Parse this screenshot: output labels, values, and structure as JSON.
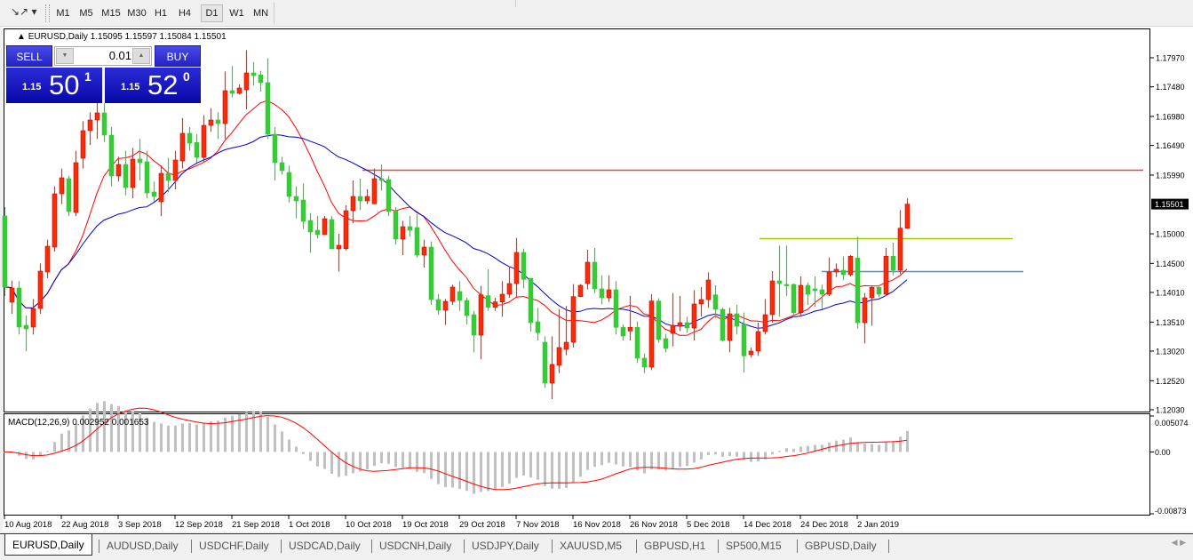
{
  "toolbar": {
    "chart_tool_icon": "line-tools-icon",
    "timeframes": [
      "M1",
      "M5",
      "M15",
      "M30",
      "H1",
      "H4",
      "D1",
      "W1",
      "MN"
    ],
    "active_timeframe": "D1"
  },
  "chart_header": {
    "symbol": "EURUSD,Daily",
    "ohlc": "1.15095 1.15597 1.15084 1.15501"
  },
  "trade_panel": {
    "sell_label": "SELL",
    "buy_label": "BUY",
    "lot_size": "0.01",
    "sell_price_prefix": "1.15",
    "sell_price_big": "50",
    "sell_price_sup": "1",
    "buy_price_prefix": "1.15",
    "buy_price_big": "52",
    "buy_price_sup": "0"
  },
  "tabs": [
    {
      "label": "EURUSD,Daily",
      "active": true
    },
    {
      "label": "AUDUSD,Daily"
    },
    {
      "label": "USDCHF,Daily"
    },
    {
      "label": "USDCAD,Daily"
    },
    {
      "label": "USDCNH,Daily"
    },
    {
      "label": "USDJPY,Daily"
    },
    {
      "label": "XAUUSD,M5"
    },
    {
      "label": "GBPUSD,H1"
    },
    {
      "label": "SP500,M15"
    },
    {
      "label": "GBPUSD,Daily"
    }
  ],
  "colors": {
    "bull": "#ff2a00",
    "bear": "#32cd32",
    "ma_fast": "#ff0000",
    "ma_slow": "#0000c8",
    "macd_hist": "#c0c0c0",
    "macd_signal": "#ff0000",
    "hline_resistance": "#e8464a",
    "hline_green": "#99cc00",
    "hline_blue": "#4a90d9"
  },
  "chart_data": {
    "type": "candlestick",
    "symbol": "EURUSD",
    "timeframe": "Daily",
    "ylim": [
      1.1203,
      1.1797
    ],
    "y_ticks": [
      "1.17970",
      "1.17480",
      "1.16980",
      "1.16490",
      "1.15990",
      "1.15000",
      "1.14500",
      "1.14010",
      "1.13510",
      "1.13020",
      "1.12520",
      "1.12030"
    ],
    "current_price": "1.15501",
    "x_tick_labels": [
      "10 Aug 2018",
      "22 Aug 2018",
      "3 Sep 2018",
      "12 Sep 2018",
      "21 Sep 2018",
      "1 Oct 2018",
      "10 Oct 2018",
      "19 Oct 2018",
      "29 Oct 2018",
      "7 Nov 2018",
      "16 Nov 2018",
      "26 Nov 2018",
      "5 Dec 2018",
      "14 Dec 2018",
      "24 Dec 2018",
      "2 Jan 2019"
    ],
    "ohlc": [
      [
        1.153,
        1.1545,
        1.1395,
        1.141
      ],
      [
        1.13845,
        1.1421,
        1.1365,
        1.14085
      ],
      [
        1.14085,
        1.142,
        1.133,
        1.13425
      ],
      [
        1.13455,
        1.1362,
        1.1302,
        1.13395
      ],
      [
        1.13425,
        1.139,
        1.133,
        1.1374
      ],
      [
        1.1374,
        1.145,
        1.1365,
        1.1437
      ],
      [
        1.14355,
        1.149,
        1.1425,
        1.1479
      ],
      [
        1.14775,
        1.158,
        1.147,
        1.15675
      ],
      [
        1.15675,
        1.161,
        1.155,
        1.15945
      ],
      [
        1.1593,
        1.1598,
        1.153,
        1.15375
      ],
      [
        1.1536,
        1.164,
        1.153,
        1.162
      ],
      [
        1.16275,
        1.169,
        1.161,
        1.1674
      ],
      [
        1.1674,
        1.1705,
        1.165,
        1.1692
      ],
      [
        1.1692,
        1.1725,
        1.166,
        1.1704
      ],
      [
        1.1704,
        1.172,
        1.1655,
        1.16665
      ],
      [
        1.16665,
        1.168,
        1.158,
        1.15975
      ],
      [
        1.15975,
        1.163,
        1.1588,
        1.1617
      ],
      [
        1.1617,
        1.164,
        1.1565,
        1.1578
      ],
      [
        1.1578,
        1.1645,
        1.156,
        1.1626
      ],
      [
        1.1626,
        1.166,
        1.159,
        1.162
      ],
      [
        1.16215,
        1.164,
        1.156,
        1.1569
      ],
      [
        1.15705,
        1.1588,
        1.1555,
        1.1563
      ],
      [
        1.1554,
        1.1615,
        1.153,
        1.1602
      ],
      [
        1.1602,
        1.1628,
        1.157,
        1.159
      ],
      [
        1.159,
        1.164,
        1.1575,
        1.16245
      ],
      [
        1.1623,
        1.1695,
        1.161,
        1.16695
      ],
      [
        1.16695,
        1.168,
        1.164,
        1.1653
      ],
      [
        1.1654,
        1.1668,
        1.162,
        1.1629
      ],
      [
        1.1629,
        1.17,
        1.162,
        1.1683
      ],
      [
        1.1683,
        1.1712,
        1.1672,
        1.1692
      ],
      [
        1.1692,
        1.1705,
        1.166,
        1.1686
      ],
      [
        1.1686,
        1.1774,
        1.166,
        1.17415
      ],
      [
        1.17415,
        1.1783,
        1.173,
        1.1737
      ],
      [
        1.1737,
        1.1752,
        1.1735,
        1.1746
      ],
      [
        1.1743,
        1.181,
        1.171,
        1.17715
      ],
      [
        1.17715,
        1.179,
        1.175,
        1.1767
      ],
      [
        1.1768,
        1.1775,
        1.174,
        1.1755
      ],
      [
        1.1755,
        1.1796,
        1.166,
        1.1668
      ],
      [
        1.1668,
        1.168,
        1.159,
        1.162
      ],
      [
        1.162,
        1.163,
        1.16,
        1.16065
      ],
      [
        1.16035,
        1.1615,
        1.1553,
        1.1563
      ],
      [
        1.1563,
        1.158,
        1.1526,
        1.15555
      ],
      [
        1.1557,
        1.1585,
        1.1508,
        1.1521
      ],
      [
        1.15225,
        1.1535,
        1.1468,
        1.1503
      ],
      [
        1.1506,
        1.153,
        1.1492,
        1.14985
      ],
      [
        1.14985,
        1.153,
        1.1498,
        1.15255
      ],
      [
        1.1524,
        1.153,
        1.1475,
        1.14745
      ],
      [
        1.14745,
        1.15,
        1.1436,
        1.14805
      ],
      [
        1.1475,
        1.1548,
        1.1472,
        1.1539
      ],
      [
        1.1539,
        1.159,
        1.1518,
        1.1563
      ],
      [
        1.1563,
        1.1593,
        1.154,
        1.15555
      ],
      [
        1.15555,
        1.1575,
        1.155,
        1.1563
      ],
      [
        1.15505,
        1.161,
        1.155,
        1.1593
      ],
      [
        1.1593,
        1.1617,
        1.1573,
        1.159
      ],
      [
        1.15915,
        1.1598,
        1.153,
        1.15375
      ],
      [
        1.1539,
        1.1545,
        1.1482,
        1.1491
      ],
      [
        1.1491,
        1.1522,
        1.1464,
        1.1512
      ],
      [
        1.1512,
        1.153,
        1.1495,
        1.1506
      ],
      [
        1.15105,
        1.1533,
        1.146,
        1.1464
      ],
      [
        1.1464,
        1.149,
        1.1443,
        1.14775
      ],
      [
        1.14775,
        1.1487,
        1.138,
        1.1389
      ],
      [
        1.1389,
        1.1398,
        1.1363,
        1.1371
      ],
      [
        1.1371,
        1.139,
        1.1346,
        1.1386
      ],
      [
        1.1386,
        1.1414,
        1.138,
        1.141
      ],
      [
        1.14025,
        1.142,
        1.137,
        1.13875
      ],
      [
        1.13875,
        1.1392,
        1.1347,
        1.1362
      ],
      [
        1.13635,
        1.137,
        1.13,
        1.1329
      ],
      [
        1.1329,
        1.1412,
        1.1288,
        1.1397
      ],
      [
        1.13955,
        1.144,
        1.137,
        1.1376
      ],
      [
        1.1376,
        1.1392,
        1.137,
        1.1385
      ],
      [
        1.1385,
        1.142,
        1.136,
        1.1398
      ],
      [
        1.1398,
        1.1445,
        1.1392,
        1.1416
      ],
      [
        1.1416,
        1.1493,
        1.1392,
        1.14685
      ],
      [
        1.14685,
        1.1475,
        1.1408,
        1.1423
      ],
      [
        1.1425,
        1.1425,
        1.1335,
        1.135
      ],
      [
        1.13515,
        1.1375,
        1.132,
        1.1333
      ],
      [
        1.1317,
        1.1327,
        1.124,
        1.1248
      ],
      [
        1.1248,
        1.1327,
        1.1221,
        1.12795
      ],
      [
        1.1278,
        1.1373,
        1.1265,
        1.1308
      ],
      [
        1.1305,
        1.1378,
        1.1295,
        1.1317
      ],
      [
        1.1317,
        1.1415,
        1.1308,
        1.1394
      ],
      [
        1.1394,
        1.1415,
        1.1393,
        1.1413
      ],
      [
        1.1416,
        1.1473,
        1.1406,
        1.1452
      ],
      [
        1.1452,
        1.1476,
        1.14,
        1.1407
      ],
      [
        1.1407,
        1.143,
        1.1381,
        1.1392
      ],
      [
        1.1392,
        1.143,
        1.1385,
        1.14055
      ],
      [
        1.14055,
        1.142,
        1.133,
        1.1342
      ],
      [
        1.1342,
        1.1347,
        1.132,
        1.13275
      ],
      [
        1.1336,
        1.1395,
        1.132,
        1.1342
      ],
      [
        1.1342,
        1.1352,
        1.1282,
        1.129
      ],
      [
        1.129,
        1.1298,
        1.1265,
        1.1275
      ],
      [
        1.1275,
        1.1398,
        1.127,
        1.13865
      ],
      [
        1.13865,
        1.1391,
        1.1316,
        1.13215
      ],
      [
        1.1323,
        1.1331,
        1.13,
        1.13065
      ],
      [
        1.1332,
        1.14,
        1.131,
        1.13455
      ],
      [
        1.1344,
        1.1395,
        1.1336,
        1.135
      ],
      [
        1.135,
        1.136,
        1.1333,
        1.1341
      ],
      [
        1.1341,
        1.1405,
        1.132,
        1.13815
      ],
      [
        1.13815,
        1.141,
        1.136,
        1.1389
      ],
      [
        1.1389,
        1.1435,
        1.1375,
        1.1422
      ],
      [
        1.1397,
        1.1413,
        1.1358,
        1.13725
      ],
      [
        1.13725,
        1.1375,
        1.1318,
        1.132
      ],
      [
        1.132,
        1.1375,
        1.13,
        1.1365
      ],
      [
        1.1365,
        1.138,
        1.133,
        1.1344
      ],
      [
        1.1347,
        1.1367,
        1.1266,
        1.1294
      ],
      [
        1.1296,
        1.1308,
        1.1291,
        1.1302
      ],
      [
        1.1302,
        1.135,
        1.1294,
        1.1335
      ],
      [
        1.1335,
        1.139,
        1.133,
        1.13635
      ],
      [
        1.13635,
        1.1437,
        1.135,
        1.14205
      ],
      [
        1.14205,
        1.148,
        1.136,
        1.1416
      ],
      [
        1.14145,
        1.148,
        1.1395,
        1.1413
      ],
      [
        1.14145,
        1.1416,
        1.1359,
        1.1367
      ],
      [
        1.1367,
        1.1428,
        1.136,
        1.1413
      ],
      [
        1.1413,
        1.1418,
        1.138,
        1.1398
      ],
      [
        1.1407,
        1.1428,
        1.1377,
        1.1404
      ],
      [
        1.14055,
        1.1414,
        1.1373,
        1.1398
      ],
      [
        1.1398,
        1.146,
        1.1395,
        1.14355
      ],
      [
        1.14355,
        1.145,
        1.1427,
        1.144
      ],
      [
        1.14385,
        1.1462,
        1.1422,
        1.1431
      ],
      [
        1.1431,
        1.1464,
        1.1428,
        1.1462
      ],
      [
        1.1459,
        1.1495,
        1.134,
        1.135
      ],
      [
        1.135,
        1.14,
        1.1315,
        1.1392
      ],
      [
        1.1392,
        1.1413,
        1.1345,
        1.14095
      ],
      [
        1.14095,
        1.1413,
        1.1393,
        1.1398
      ],
      [
        1.1398,
        1.1476,
        1.1395,
        1.1462
      ],
      [
        1.1462,
        1.1485,
        1.143,
        1.14385
      ],
      [
        1.14385,
        1.154,
        1.1432,
        1.15095
      ],
      [
        1.15095,
        1.15597,
        1.15084,
        1.15501
      ]
    ],
    "moving_averages": [
      {
        "color": "#ff0000",
        "period": 10
      },
      {
        "color": "#0000c8",
        "period": 21
      }
    ],
    "horizontal_lines": [
      {
        "price": 1.1608,
        "color": "#e8464a"
      },
      {
        "price": 1.1493,
        "color": "#99cc00"
      },
      {
        "price": 1.1437,
        "color": "#4a90d9"
      }
    ],
    "macd": {
      "label": "MACD(12,26,9) 0.002952 0.001653",
      "fast": 12,
      "slow": 26,
      "signal": 9,
      "main_value": 0.002952,
      "signal_value": 0.001653,
      "ylim": [
        -0.00873,
        0.005074
      ],
      "y_ticks": [
        "0.005074",
        "0.00",
        "-0.00873"
      ]
    }
  }
}
